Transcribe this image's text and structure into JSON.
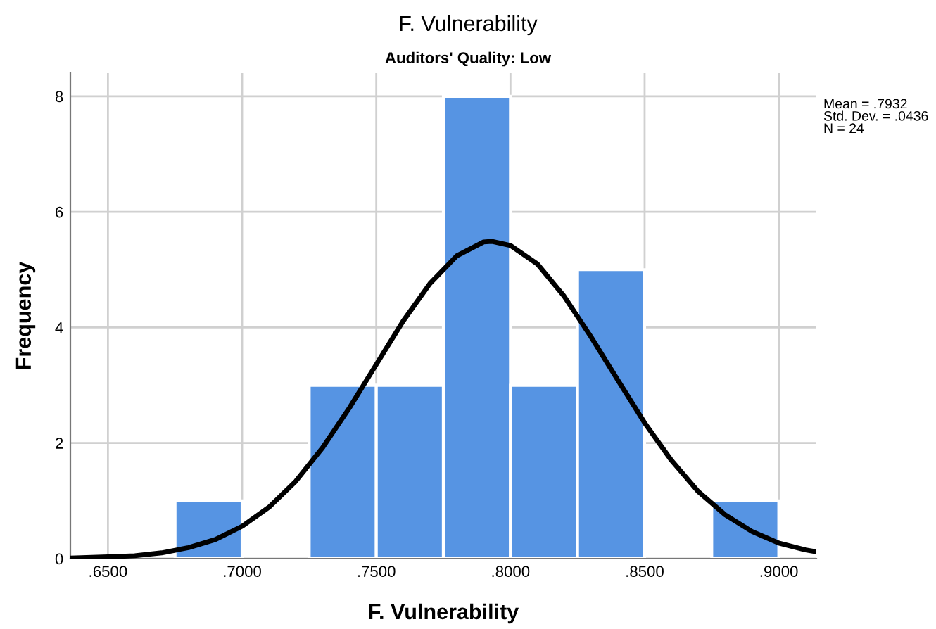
{
  "chart_data": {
    "type": "histogram",
    "title": "F. Vulnerability",
    "subtitle": "Auditors' Quality: Low",
    "xlabel": "F. Vulnerability",
    "ylabel": "Frequency",
    "annotations": [
      "Mean = .7932\nStd. Dev. = .0436\nN = 24"
    ],
    "series": [
      {
        "color": "#5694e3",
        "bins": [
          0.675,
          0.7,
          0.725,
          0.75,
          0.775,
          0.8,
          0.825,
          0.85,
          0.875,
          0.9
        ],
        "values": [
          1,
          0,
          3,
          3,
          8,
          3,
          5,
          0,
          1
        ]
      },
      {
        "type": "line",
        "color": "#000000",
        "x": [
          0.636,
          0.65,
          0.66,
          0.67,
          0.68,
          0.69,
          0.7,
          0.71,
          0.72,
          0.73,
          0.74,
          0.75,
          0.76,
          0.77,
          0.78,
          0.79,
          0.7932,
          0.8,
          0.81,
          0.82,
          0.83,
          0.84,
          0.85,
          0.86,
          0.87,
          0.88,
          0.89,
          0.9,
          0.91,
          0.914
        ],
        "values": [
          0.01,
          0.03,
          0.05,
          0.1,
          0.19,
          0.33,
          0.56,
          0.89,
          1.34,
          1.92,
          2.61,
          3.36,
          4.11,
          4.76,
          5.24,
          5.48,
          5.49,
          5.42,
          5.1,
          4.54,
          3.84,
          3.09,
          2.35,
          1.7,
          1.16,
          0.76,
          0.47,
          0.27,
          0.15,
          0.12
        ]
      }
    ],
    "xlim": [
      0.636,
      0.914
    ],
    "ylim": [
      0,
      8.4
    ],
    "xticks": [
      {
        "value": 0.65,
        "label": ".6500"
      },
      {
        "value": 0.7,
        "label": ".7000"
      },
      {
        "value": 0.75,
        "label": ".7500"
      },
      {
        "value": 0.8,
        "label": ".8000"
      },
      {
        "value": 0.85,
        "label": ".8500"
      },
      {
        "value": 0.9,
        "label": ".9000"
      }
    ],
    "yticks": [
      0,
      2,
      4,
      6,
      8
    ],
    "grid": true,
    "legend": false
  }
}
